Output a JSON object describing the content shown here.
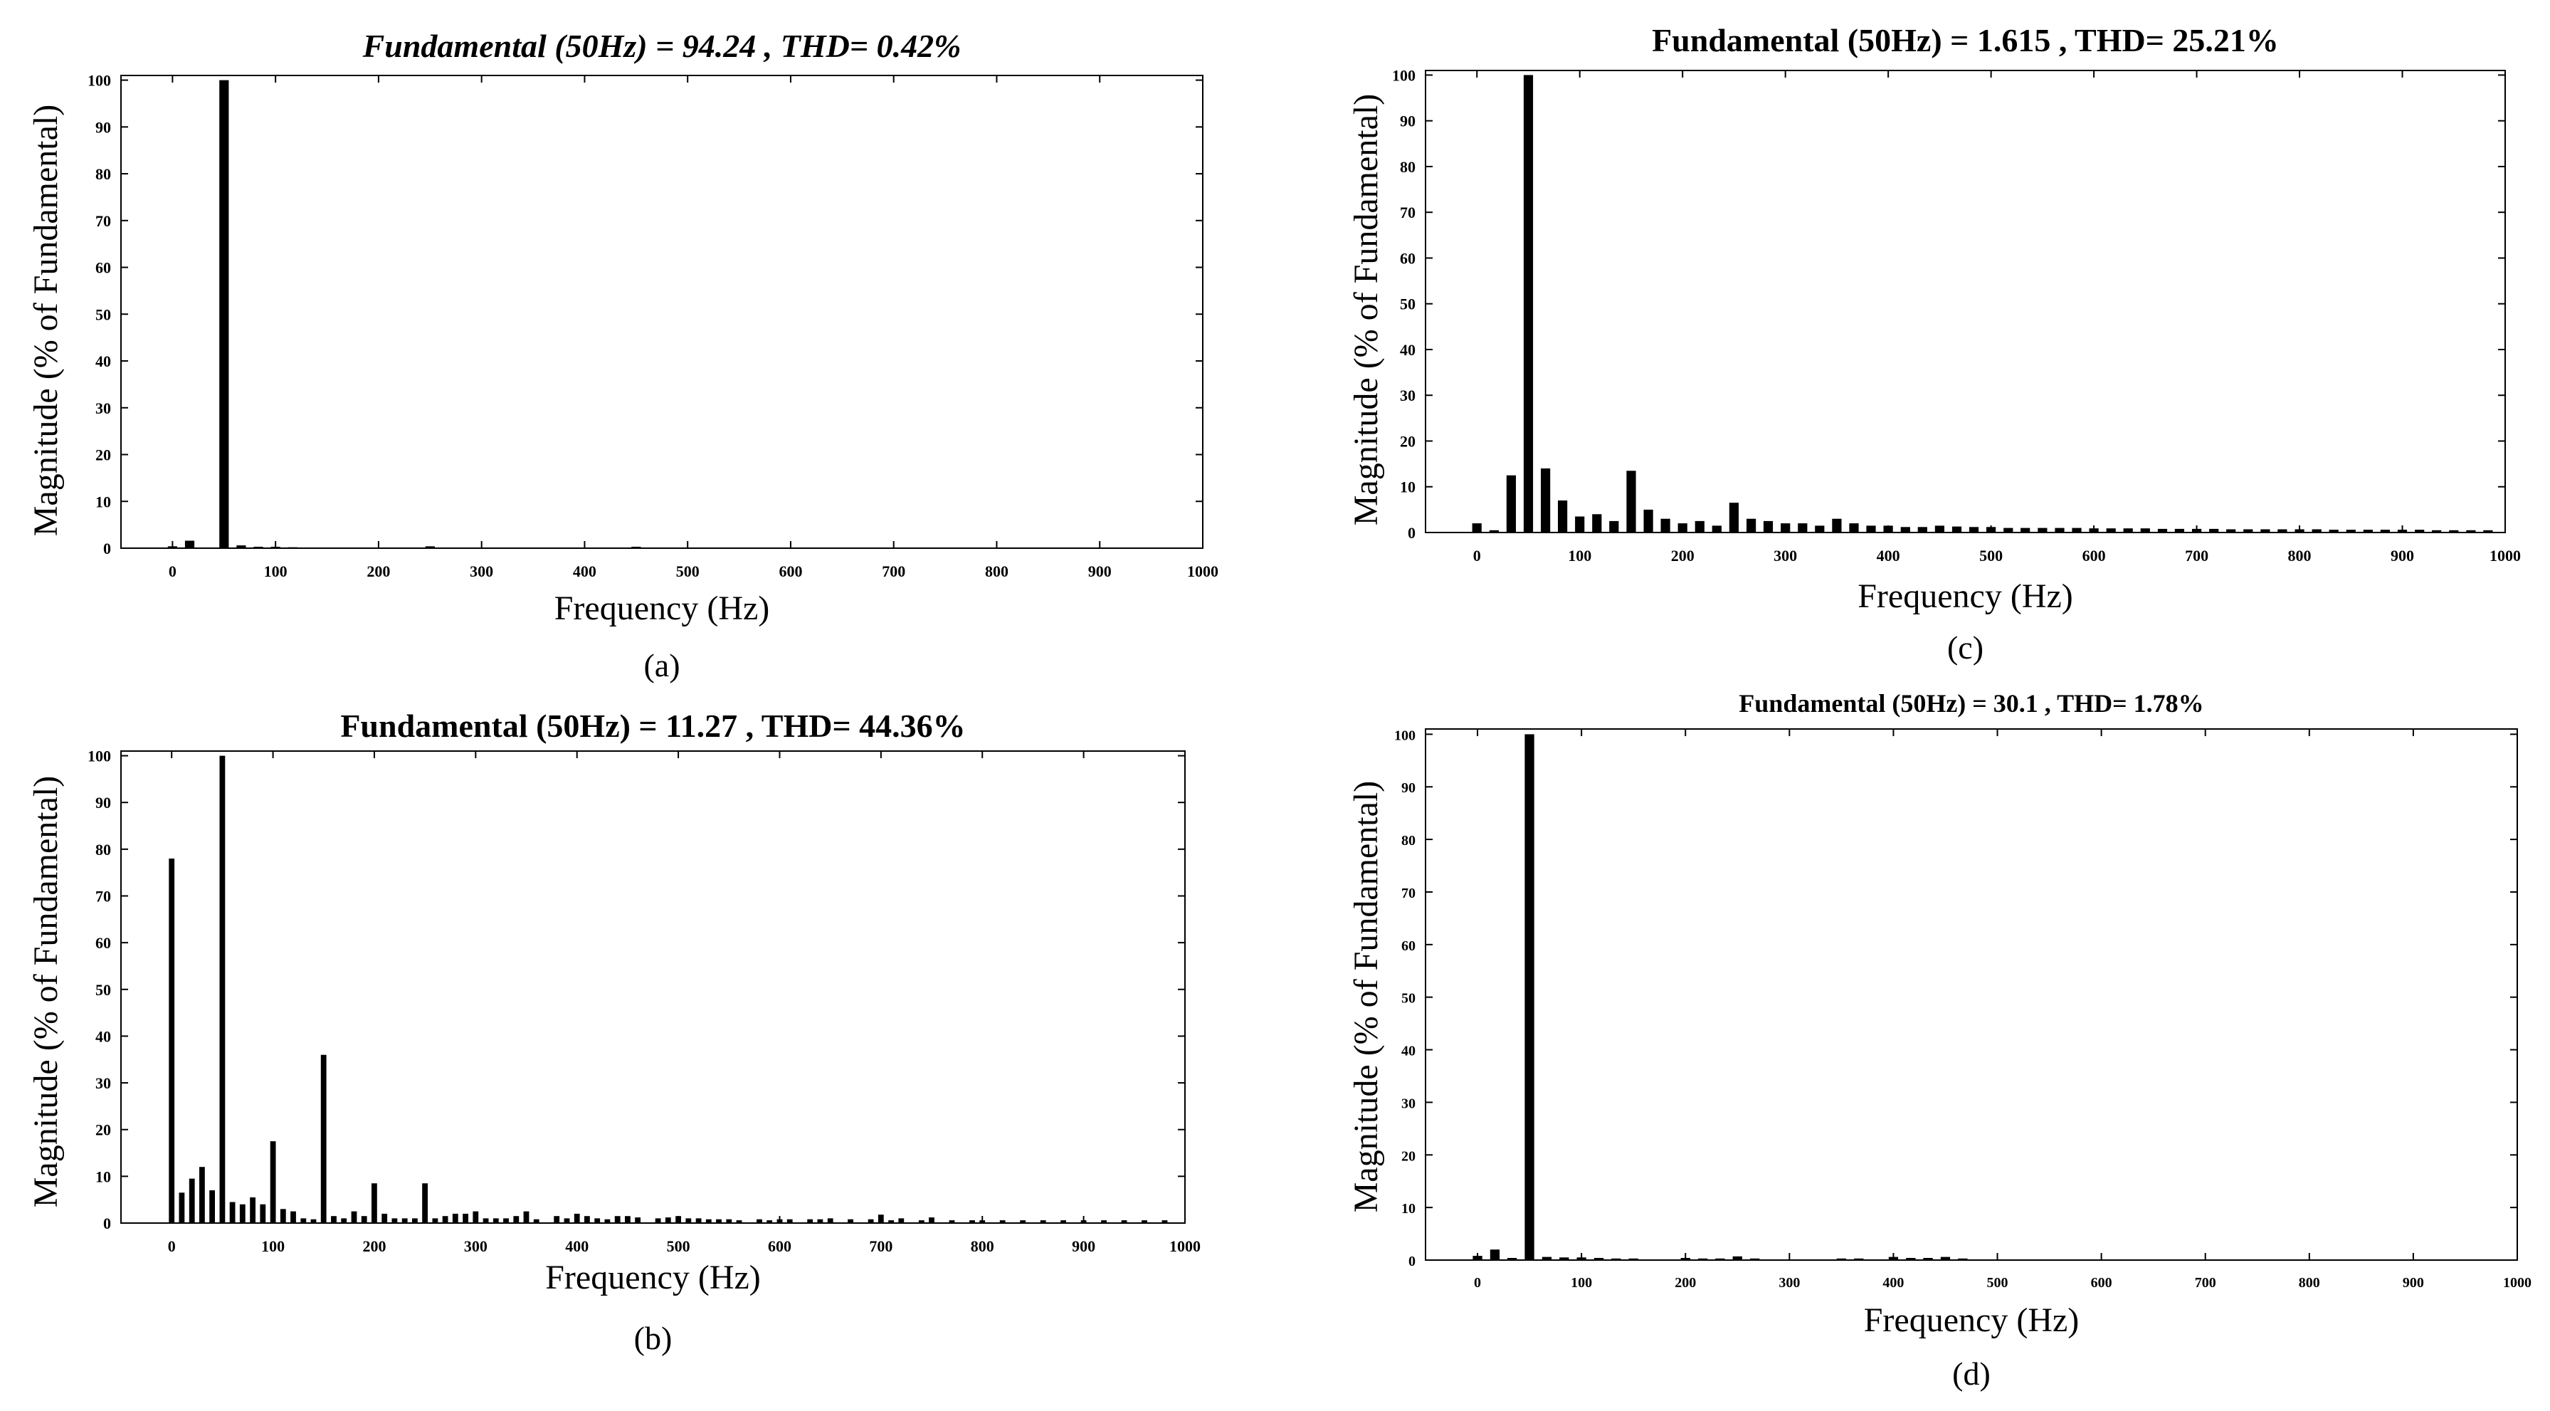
{
  "chart_data": [
    {
      "type": "bar",
      "panel_label": "(a)",
      "title": "Fundamental (50Hz) = 94.24 , THD= 0.42%",
      "xlabel": "Frequency (Hz)",
      "ylabel": "Magnitude (% of Fundamental)",
      "xlim": [
        -50,
        1000
      ],
      "ylim": [
        0,
        101
      ],
      "xticks": [
        0,
        100,
        200,
        300,
        400,
        500,
        600,
        700,
        800,
        900,
        1000
      ],
      "yticks": [
        0,
        10,
        20,
        30,
        40,
        50,
        60,
        70,
        80,
        90,
        100
      ],
      "grid": false,
      "x": [
        0,
        16.7,
        50,
        66.7,
        83.3,
        100,
        116.7,
        250,
        450
      ],
      "values": [
        0.4,
        1.6,
        100,
        0.6,
        0.3,
        0.3,
        0.2,
        0.4,
        0.3
      ]
    },
    {
      "type": "bar",
      "panel_label": "(b)",
      "title": "Fundamental (50Hz) = 11.27 , THD= 44.36%",
      "xlabel": "Frequency (Hz)",
      "ylabel": "Magnitude (% of Fundamental)",
      "xlim": [
        -50,
        1000
      ],
      "ylim": [
        0,
        101
      ],
      "xticks": [
        0,
        100,
        200,
        300,
        400,
        500,
        600,
        700,
        800,
        900,
        1000
      ],
      "yticks": [
        0,
        10,
        20,
        30,
        40,
        50,
        60,
        70,
        80,
        90,
        100
      ],
      "grid": false,
      "x": [
        0,
        10,
        20,
        30,
        40,
        50,
        60,
        70,
        80,
        90,
        100,
        110,
        120,
        130,
        140,
        150,
        160,
        170,
        180,
        190,
        200,
        210,
        220,
        230,
        240,
        250,
        260,
        270,
        280,
        290,
        300,
        310,
        320,
        330,
        340,
        350,
        360,
        380,
        390,
        400,
        410,
        420,
        430,
        440,
        450,
        460,
        480,
        490,
        500,
        510,
        520,
        530,
        540,
        550,
        560,
        580,
        590,
        600,
        610,
        630,
        640,
        650,
        670,
        690,
        700,
        710,
        720,
        740,
        750,
        770,
        790,
        800,
        820,
        840,
        860,
        880,
        900,
        920,
        940,
        960,
        980
      ],
      "values": [
        78,
        6.5,
        9.5,
        12,
        7,
        100,
        4.5,
        4,
        5.5,
        4,
        17.5,
        3,
        2.5,
        1,
        0.8,
        36,
        1.5,
        1,
        2.5,
        1.5,
        8.5,
        2,
        1,
        1,
        1,
        8.5,
        1,
        1.5,
        2,
        2,
        2.5,
        1,
        1,
        1,
        1.5,
        2.5,
        0.8,
        1.5,
        1,
        2,
        1.5,
        1,
        0.8,
        1.5,
        1.5,
        1.2,
        1,
        1.2,
        1.5,
        1,
        1,
        0.8,
        0.8,
        0.8,
        0.6,
        0.8,
        0.6,
        0.8,
        0.8,
        0.8,
        0.8,
        1,
        0.8,
        0.8,
        1.8,
        0.6,
        1,
        0.6,
        1.2,
        0.6,
        0.6,
        0.6,
        0.6,
        0.6,
        0.6,
        0.6,
        0.6,
        0.6,
        0.6,
        0.6,
        0.6
      ]
    },
    {
      "type": "bar",
      "panel_label": "(c)",
      "title": "Fundamental (50Hz) = 1.615 , THD= 25.21%",
      "xlabel": "Frequency (Hz)",
      "ylabel": "Magnitude (% of Fundamental)",
      "xlim": [
        -50,
        1000
      ],
      "ylim": [
        0,
        101
      ],
      "xticks": [
        0,
        100,
        200,
        300,
        400,
        500,
        600,
        700,
        800,
        900,
        1000
      ],
      "yticks": [
        0,
        10,
        20,
        30,
        40,
        50,
        60,
        70,
        80,
        90,
        100
      ],
      "grid": false,
      "x": [
        0,
        16.7,
        33.3,
        50,
        66.7,
        83.3,
        100,
        116.7,
        133.3,
        150,
        166.7,
        183.3,
        200,
        216.7,
        233.3,
        250,
        266.7,
        283.3,
        300,
        316.7,
        333.3,
        350,
        366.7,
        383.3,
        400,
        416.7,
        433.3,
        450,
        466.7,
        483.3,
        500,
        516.7,
        533.3,
        550,
        566.7,
        583.3,
        600,
        616.7,
        633.3,
        650,
        666.7,
        683.3,
        700,
        716.7,
        733.3,
        750,
        766.7,
        783.3,
        800,
        816.7,
        833.3,
        850,
        866.7,
        883.3,
        900,
        916.7,
        933.3,
        950,
        966.7,
        983.3
      ],
      "values": [
        2,
        0.5,
        12.5,
        100,
        14,
        7,
        3.5,
        4,
        2.5,
        13.5,
        5,
        3,
        2,
        2.5,
        1.5,
        6.5,
        3,
        2.5,
        2,
        2,
        1.5,
        3,
        2,
        1.5,
        1.5,
        1.2,
        1.2,
        1.5,
        1.3,
        1.2,
        1.2,
        1,
        1,
        1,
        1,
        1,
        0.9,
        0.9,
        0.9,
        0.9,
        0.8,
        0.8,
        0.8,
        0.8,
        0.7,
        0.7,
        0.7,
        0.7,
        0.7,
        0.7,
        0.6,
        0.6,
        0.6,
        0.6,
        0.6,
        0.6,
        0.5,
        0.5,
        0.5,
        0.5
      ]
    },
    {
      "type": "bar",
      "panel_label": "(d)",
      "title": "Fundamental (50Hz) = 30.1 , THD= 1.78%",
      "xlabel": "Frequency (Hz)",
      "ylabel": "Magnitude (% of Fundamental)",
      "xlim": [
        -50,
        1000
      ],
      "ylim": [
        0,
        101
      ],
      "xticks": [
        0,
        100,
        200,
        300,
        400,
        500,
        600,
        700,
        800,
        900,
        1000
      ],
      "yticks": [
        0,
        10,
        20,
        30,
        40,
        50,
        60,
        70,
        80,
        90,
        100
      ],
      "grid": false,
      "x": [
        0,
        16.7,
        33.3,
        50,
        66.7,
        83.3,
        100,
        116.7,
        133.3,
        150,
        200,
        216.7,
        233.3,
        250,
        266.7,
        350,
        366.7,
        400,
        416.7,
        433.3,
        450,
        466.7
      ],
      "values": [
        0.8,
        2,
        0.4,
        100,
        0.6,
        0.5,
        0.5,
        0.4,
        0.3,
        0.3,
        0.4,
        0.3,
        0.3,
        0.7,
        0.3,
        0.3,
        0.3,
        0.6,
        0.4,
        0.4,
        0.6,
        0.3
      ]
    }
  ]
}
